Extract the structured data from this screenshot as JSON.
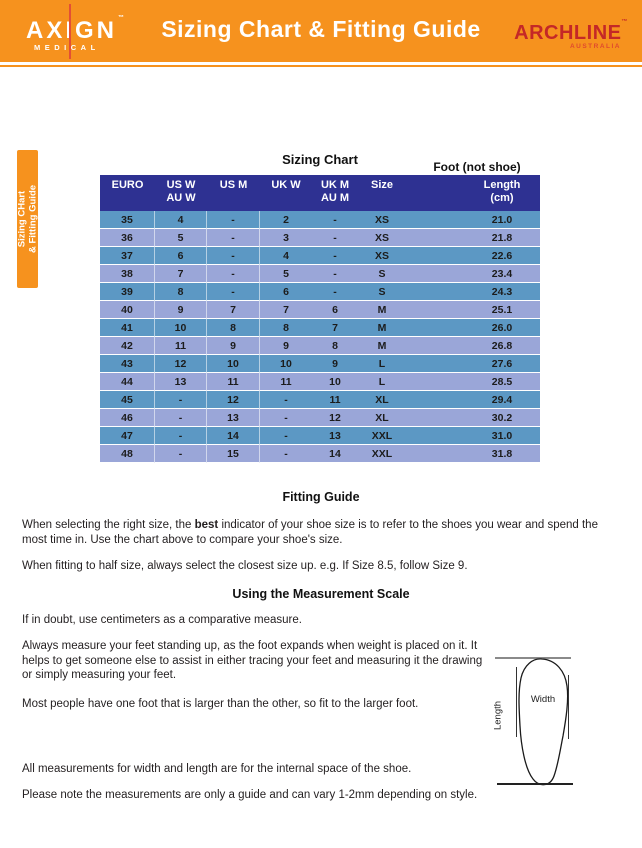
{
  "header": {
    "title": "Sizing Chart & Fitting Guide",
    "brand_left": {
      "name": "AXIGN",
      "tm": "TM",
      "sub": "MEDICAL"
    },
    "brand_right": {
      "name": "ARCHLINE",
      "tm": "TM",
      "sub": "AUSTRALIA"
    },
    "accent_orange": "#f6921e",
    "accent_red": "#c42827"
  },
  "side_tab": {
    "line1": "Sizing CHart",
    "line2": "& Fitting Guide"
  },
  "sizing_chart": {
    "title": "Sizing Chart",
    "note": "Foot (not shoe)",
    "header_blue": "#2e3192",
    "row_color_a": "#5c98c4",
    "row_color_b": "#9aa6d8",
    "columns": [
      {
        "l1": "EURO",
        "l2": ""
      },
      {
        "l1": "US W",
        "l2": "AU W"
      },
      {
        "l1": "US M",
        "l2": ""
      },
      {
        "l1": "UK W",
        "l2": ""
      },
      {
        "l1": "UK M",
        "l2": "AU M"
      },
      {
        "l1": "Size",
        "l2": ""
      },
      {
        "l1": "Length",
        "l2": "(cm)"
      }
    ],
    "rows": [
      [
        "35",
        "4",
        "-",
        "2",
        "-",
        "XS",
        "21.0"
      ],
      [
        "36",
        "5",
        "-",
        "3",
        "-",
        "XS",
        "21.8"
      ],
      [
        "37",
        "6",
        "-",
        "4",
        "-",
        "XS",
        "22.6"
      ],
      [
        "38",
        "7",
        "-",
        "5",
        "-",
        "S",
        "23.4"
      ],
      [
        "39",
        "8",
        "-",
        "6",
        "-",
        "S",
        "24.3"
      ],
      [
        "40",
        "9",
        "7",
        "7",
        "6",
        "M",
        "25.1"
      ],
      [
        "41",
        "10",
        "8",
        "8",
        "7",
        "M",
        "26.0"
      ],
      [
        "42",
        "11",
        "9",
        "9",
        "8",
        "M",
        "26.8"
      ],
      [
        "43",
        "12",
        "10",
        "10",
        "9",
        "L",
        "27.6"
      ],
      [
        "44",
        "13",
        "11",
        "11",
        "10",
        "L",
        "28.5"
      ],
      [
        "45",
        "-",
        "12",
        "-",
        "11",
        "XL",
        "29.4"
      ],
      [
        "46",
        "-",
        "13",
        "-",
        "12",
        "XL",
        "30.2"
      ],
      [
        "47",
        "-",
        "14",
        "-",
        "13",
        "XXL",
        "31.0"
      ],
      [
        "48",
        "-",
        "15",
        "-",
        "14",
        "XXL",
        "31.8"
      ]
    ]
  },
  "fitting_guide": {
    "heading": "Fitting Guide",
    "p1_before": "When selecting the right size, the ",
    "p1_bold": "best",
    "p1_after": " indicator of your shoe size is to refer to the shoes you wear and spend the most time in. Use the chart above to compare your shoe's size.",
    "p2": "When fitting to half size, always select the closest size up. e.g. If Size 8.5, follow Size 9."
  },
  "measurement_scale": {
    "heading": "Using the Measurement Scale",
    "p1": "If in doubt, use centimeters as a comparative measure.",
    "p2": "Always measure your feet standing up, as the foot expands when weight is placed on it. It helps to get someone else to assist in either tracing your feet and measuring it the drawing or simply measuring your feet.",
    "p3": "Most people have one foot that is larger than the other, so fit to the larger foot.",
    "p4": "All measurements for width and length are for the internal space of the shoe.",
    "p5": "Please note the measurements are only a guide and can vary 1-2mm depending on style."
  },
  "foot_diagram": {
    "label_length": "Length",
    "label_width": "Width"
  }
}
